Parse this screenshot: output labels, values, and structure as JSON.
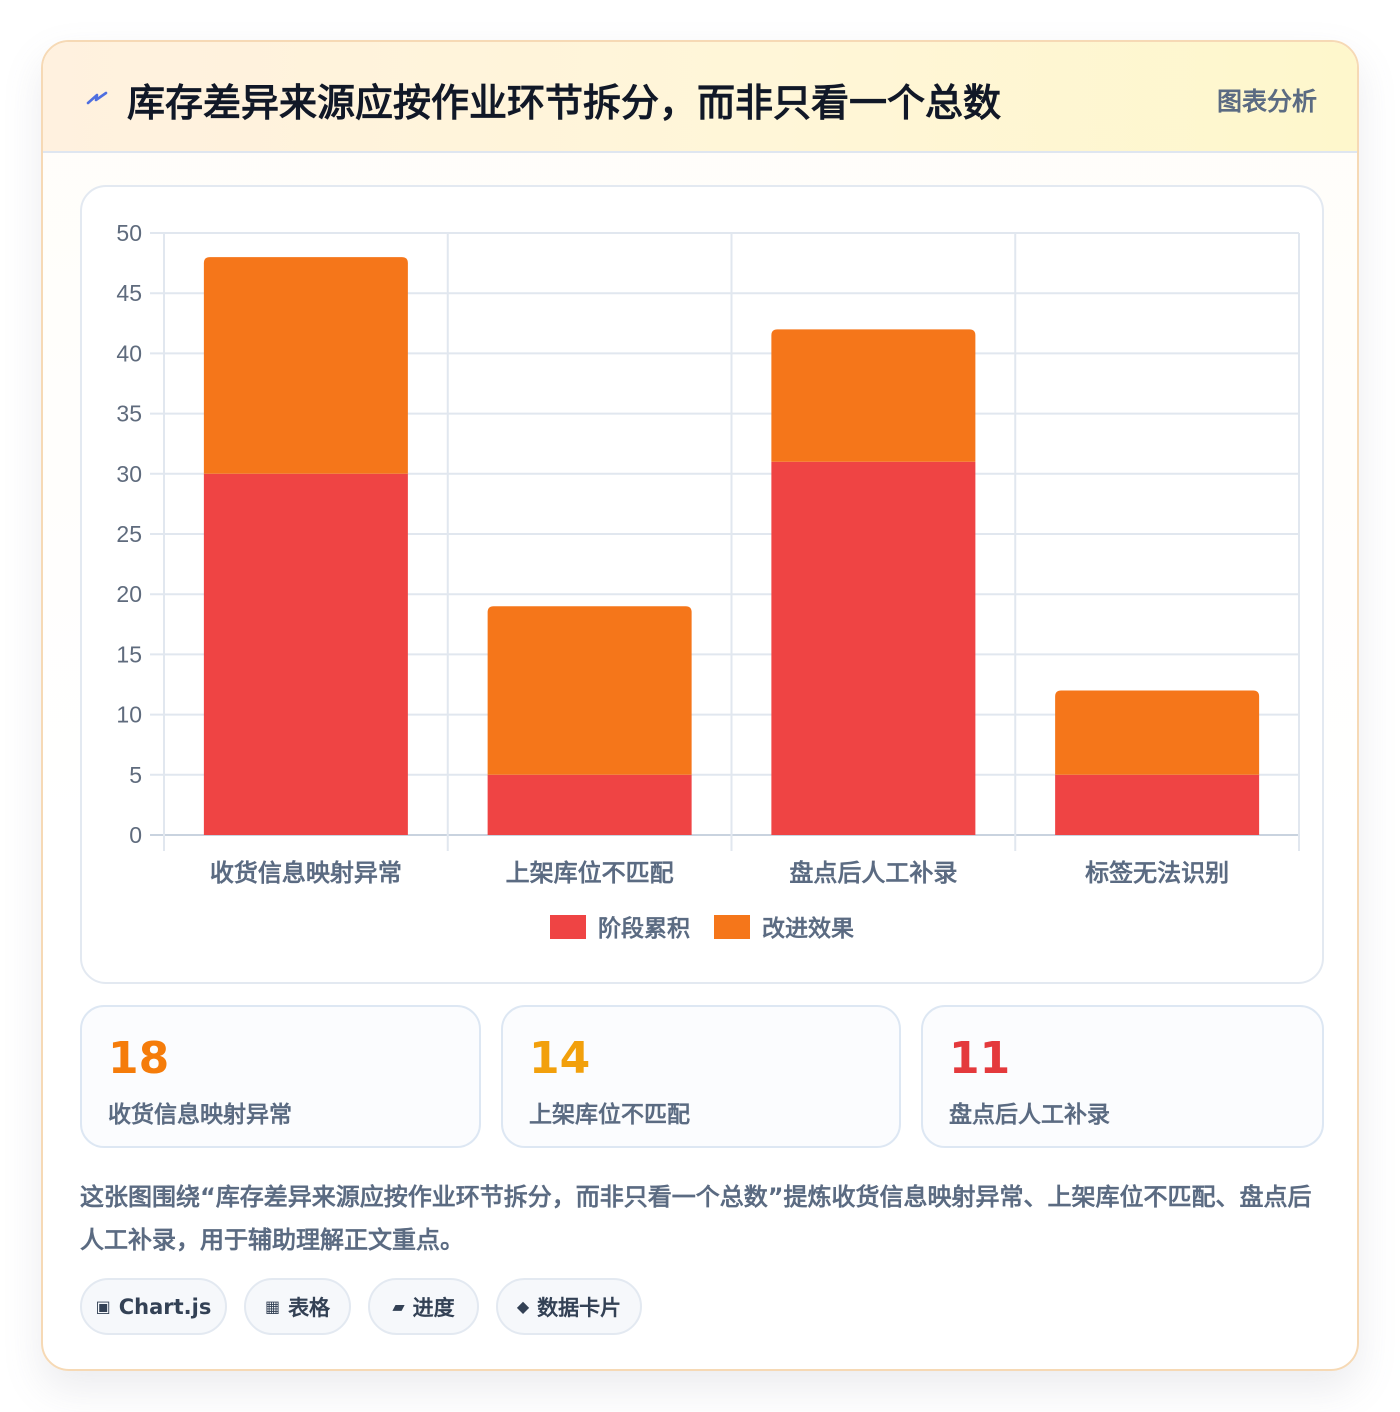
{
  "header": {
    "title": "库存差异来源应按作业环节拆分，而非只看一个总数",
    "tag": "图表分析",
    "icon": "lightning-icon"
  },
  "chart_data": {
    "type": "bar",
    "stacked": true,
    "categories": [
      "收货信息映射异常",
      "上架库位不匹配",
      "盘点后人工补录",
      "标签无法识别"
    ],
    "series": [
      {
        "name": "阶段累积",
        "values": [
          30,
          5,
          31,
          5
        ],
        "color": "#ef4444"
      },
      {
        "name": "改进效果",
        "values": [
          18,
          14,
          11,
          7
        ],
        "color": "#f5761a"
      }
    ],
    "ylim": [
      0,
      50
    ],
    "yticks": [
      0,
      5,
      10,
      15,
      20,
      25,
      30,
      35,
      40,
      45,
      50
    ],
    "grid": true,
    "legend_position": "bottom"
  },
  "stats": [
    {
      "value": "18",
      "label": "收货信息映射异常",
      "color": "#f57c0a"
    },
    {
      "value": "14",
      "label": "上架库位不匹配",
      "color": "#f2a00c"
    },
    {
      "value": "11",
      "label": "盘点后人工补录",
      "color": "#e4393c"
    }
  ],
  "description": "这张图围绕“库存差异来源应按作业环节拆分，而非只看一个总数”提炼收货信息映射异常、上架库位不匹配、盘点后人工补录，用于辅助理解正文重点。",
  "chips": [
    {
      "icon": "▣",
      "label": "Chart.js"
    },
    {
      "icon": "▦",
      "label": "表格"
    },
    {
      "icon": "▰",
      "label": "进度"
    },
    {
      "icon": "◆",
      "label": "数据卡片"
    }
  ]
}
